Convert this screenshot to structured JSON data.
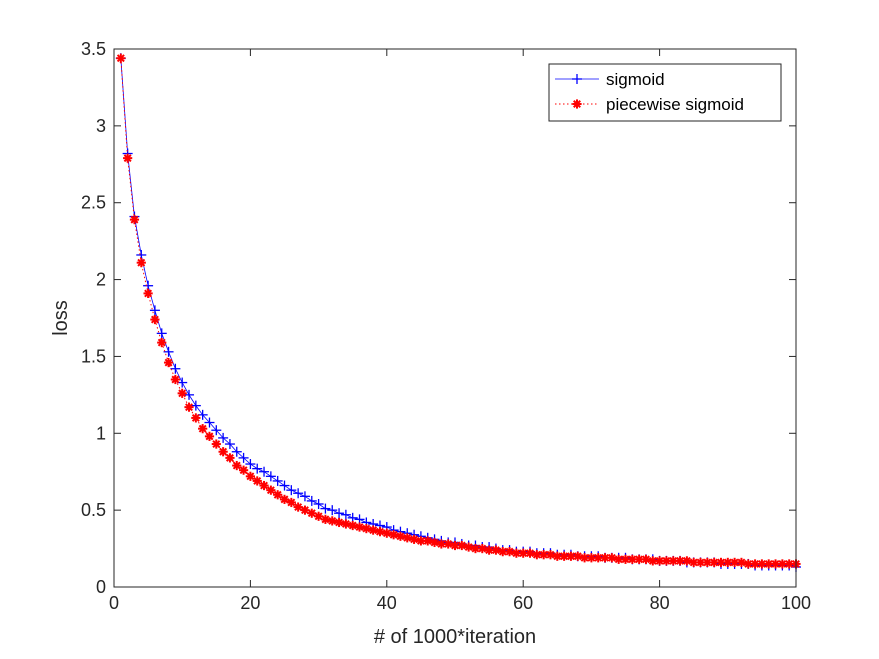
{
  "chart_data": {
    "type": "line",
    "title": "",
    "xlabel": "# of 1000*iteration",
    "ylabel": "loss",
    "xlim": [
      0,
      100
    ],
    "ylim": [
      0,
      3.5
    ],
    "xticks": [
      0,
      20,
      40,
      60,
      80,
      100
    ],
    "yticks": [
      0,
      0.5,
      1,
      1.5,
      2,
      2.5,
      3,
      3.5
    ],
    "xtick_labels": [
      "0",
      "20",
      "40",
      "60",
      "80",
      "100"
    ],
    "ytick_labels": [
      "0",
      "0.5",
      "1",
      "1.5",
      "2",
      "2.5",
      "3",
      "3.5"
    ],
    "grid": false,
    "legend_position": "top-right",
    "x": [
      1,
      2,
      3,
      4,
      5,
      6,
      7,
      8,
      9,
      10,
      11,
      12,
      13,
      14,
      15,
      16,
      17,
      18,
      19,
      20,
      21,
      22,
      23,
      24,
      25,
      26,
      27,
      28,
      29,
      30,
      31,
      32,
      33,
      34,
      35,
      36,
      37,
      38,
      39,
      40,
      41,
      42,
      43,
      44,
      45,
      46,
      47,
      48,
      49,
      50,
      51,
      52,
      53,
      54,
      55,
      56,
      57,
      58,
      59,
      60,
      61,
      62,
      63,
      64,
      65,
      66,
      67,
      68,
      69,
      70,
      71,
      72,
      73,
      74,
      75,
      76,
      77,
      78,
      79,
      80,
      81,
      82,
      83,
      84,
      85,
      86,
      87,
      88,
      89,
      90,
      91,
      92,
      93,
      94,
      95,
      96,
      97,
      98,
      99,
      100
    ],
    "series": [
      {
        "name": "sigmoid",
        "color": "#0000ff",
        "line_style": "solid",
        "marker": "+",
        "values": [
          3.44,
          2.82,
          2.41,
          2.16,
          1.96,
          1.8,
          1.65,
          1.53,
          1.42,
          1.33,
          1.25,
          1.18,
          1.12,
          1.07,
          1.02,
          0.97,
          0.93,
          0.88,
          0.84,
          0.8,
          0.77,
          0.75,
          0.72,
          0.69,
          0.66,
          0.63,
          0.61,
          0.59,
          0.56,
          0.54,
          0.51,
          0.5,
          0.48,
          0.47,
          0.45,
          0.44,
          0.42,
          0.41,
          0.4,
          0.39,
          0.37,
          0.36,
          0.35,
          0.34,
          0.33,
          0.32,
          0.31,
          0.3,
          0.29,
          0.29,
          0.28,
          0.27,
          0.27,
          0.26,
          0.26,
          0.25,
          0.24,
          0.24,
          0.23,
          0.23,
          0.23,
          0.22,
          0.22,
          0.22,
          0.21,
          0.21,
          0.21,
          0.2,
          0.2,
          0.2,
          0.2,
          0.19,
          0.19,
          0.19,
          0.19,
          0.18,
          0.18,
          0.18,
          0.18,
          0.17,
          0.17,
          0.17,
          0.17,
          0.16,
          0.16,
          0.16,
          0.16,
          0.16,
          0.15,
          0.15,
          0.15,
          0.15,
          0.15,
          0.14,
          0.14,
          0.14,
          0.14,
          0.14,
          0.14,
          0.13
        ]
      },
      {
        "name": "piecewise sigmoid",
        "color": "#ff0000",
        "line_style": "dotted",
        "marker": "*",
        "values": [
          3.44,
          2.79,
          2.39,
          2.11,
          1.91,
          1.74,
          1.59,
          1.46,
          1.35,
          1.26,
          1.17,
          1.1,
          1.03,
          0.98,
          0.93,
          0.88,
          0.84,
          0.79,
          0.76,
          0.72,
          0.69,
          0.66,
          0.63,
          0.6,
          0.57,
          0.55,
          0.52,
          0.5,
          0.48,
          0.46,
          0.44,
          0.43,
          0.42,
          0.41,
          0.4,
          0.39,
          0.38,
          0.37,
          0.36,
          0.35,
          0.34,
          0.33,
          0.32,
          0.31,
          0.3,
          0.3,
          0.29,
          0.28,
          0.28,
          0.27,
          0.27,
          0.26,
          0.25,
          0.25,
          0.24,
          0.24,
          0.23,
          0.23,
          0.22,
          0.22,
          0.22,
          0.21,
          0.21,
          0.21,
          0.2,
          0.2,
          0.2,
          0.2,
          0.19,
          0.19,
          0.19,
          0.19,
          0.19,
          0.18,
          0.18,
          0.18,
          0.18,
          0.18,
          0.17,
          0.17,
          0.17,
          0.17,
          0.17,
          0.17,
          0.16,
          0.16,
          0.16,
          0.16,
          0.16,
          0.16,
          0.16,
          0.16,
          0.15,
          0.15,
          0.15,
          0.15,
          0.15,
          0.15,
          0.15,
          0.15
        ]
      }
    ]
  }
}
